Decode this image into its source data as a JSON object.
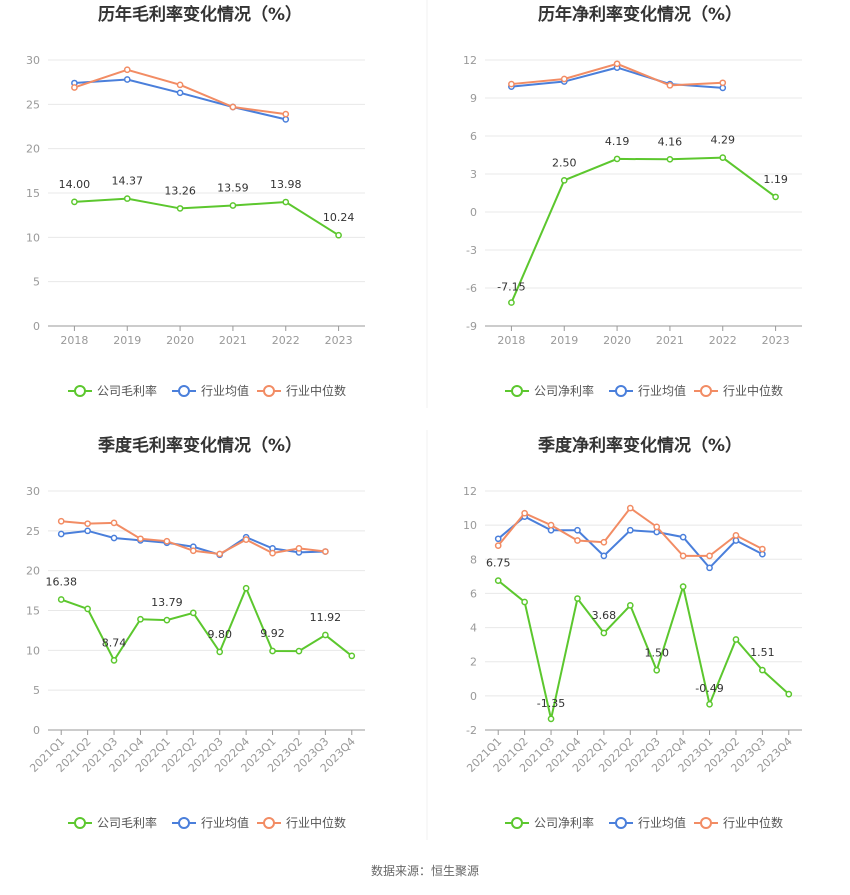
{
  "colors": {
    "company": "#5cc72e",
    "avg": "#4a7fdb",
    "median": "#f28c64",
    "grid": "#e8e8e8",
    "axis": "#999999"
  },
  "source": "数据来源：恒生聚源",
  "chart_data": [
    {
      "type": "line",
      "title": "历年毛利率变化情况（%）",
      "categories": [
        "2018",
        "2019",
        "2020",
        "2021",
        "2022",
        "2023"
      ],
      "ylim": [
        0,
        30
      ],
      "yticks": [
        0,
        5,
        10,
        15,
        20,
        25,
        30
      ],
      "rotate_labels": false,
      "legend": [
        "公司毛利率",
        "行业均值",
        "行业中位数"
      ],
      "series": [
        {
          "name": "公司毛利率",
          "values": [
            14.0,
            14.37,
            13.26,
            13.59,
            13.98,
            10.24
          ],
          "labels": [
            "14.00",
            "14.37",
            "13.26",
            "13.59",
            "13.98",
            "10.24"
          ]
        },
        {
          "name": "行业均值",
          "values": [
            27.4,
            27.8,
            26.3,
            24.7,
            23.3,
            null
          ]
        },
        {
          "name": "行业中位数",
          "values": [
            26.9,
            28.9,
            27.2,
            24.7,
            23.9,
            null
          ]
        }
      ]
    },
    {
      "type": "line",
      "title": "历年净利率变化情况（%）",
      "categories": [
        "2018",
        "2019",
        "2020",
        "2021",
        "2022",
        "2023"
      ],
      "ylim": [
        -9,
        12
      ],
      "yticks": [
        -9,
        -6,
        -3,
        0,
        3,
        6,
        9,
        12
      ],
      "rotate_labels": false,
      "legend": [
        "公司净利率",
        "行业均值",
        "行业中位数"
      ],
      "series": [
        {
          "name": "公司净利率",
          "values": [
            -7.15,
            2.5,
            4.19,
            4.16,
            4.29,
            1.19
          ],
          "labels": [
            "-7.15",
            "2.50",
            "4.19",
            "4.16",
            "4.29",
            "1.19"
          ]
        },
        {
          "name": "行业均值",
          "values": [
            9.9,
            10.3,
            11.4,
            10.1,
            9.8,
            null
          ]
        },
        {
          "name": "行业中位数",
          "values": [
            10.1,
            10.5,
            11.7,
            10.0,
            10.2,
            null
          ]
        }
      ]
    },
    {
      "type": "line",
      "title": "季度毛利率变化情况（%）",
      "categories": [
        "2021Q1",
        "2021Q2",
        "2021Q3",
        "2021Q4",
        "2022Q1",
        "2022Q2",
        "2022Q3",
        "2022Q4",
        "2023Q1",
        "2023Q2",
        "2023Q3",
        "2023Q4"
      ],
      "ylim": [
        0,
        30
      ],
      "yticks": [
        0,
        5,
        10,
        15,
        20,
        25,
        30
      ],
      "rotate_labels": true,
      "legend": [
        "公司毛利率",
        "行业均值",
        "行业中位数"
      ],
      "series": [
        {
          "name": "公司毛利率",
          "values": [
            16.38,
            15.2,
            8.74,
            13.9,
            13.79,
            14.7,
            9.8,
            17.8,
            9.92,
            9.9,
            11.92,
            9.3
          ],
          "labels": [
            "16.38",
            null,
            "8.74",
            null,
            "13.79",
            null,
            "9.80",
            null,
            "9.92",
            null,
            "11.92",
            null
          ]
        },
        {
          "name": "行业均值",
          "values": [
            24.6,
            25.0,
            24.1,
            23.8,
            23.5,
            23.0,
            22.0,
            24.2,
            22.8,
            22.3,
            22.4,
            null
          ]
        },
        {
          "name": "行业中位数",
          "values": [
            26.2,
            25.9,
            26.0,
            24.0,
            23.7,
            22.5,
            22.1,
            23.9,
            22.2,
            22.8,
            22.4,
            null
          ]
        }
      ]
    },
    {
      "type": "line",
      "title": "季度净利率变化情况（%）",
      "categories": [
        "2021Q1",
        "2021Q2",
        "2021Q3",
        "2021Q4",
        "2022Q1",
        "2022Q2",
        "2022Q3",
        "2022Q4",
        "2023Q1",
        "2023Q2",
        "2023Q3",
        "2023Q4"
      ],
      "ylim": [
        -2,
        12
      ],
      "yticks": [
        -2,
        0,
        2,
        4,
        6,
        8,
        10,
        12
      ],
      "rotate_labels": true,
      "legend": [
        "公司净利率",
        "行业均值",
        "行业中位数"
      ],
      "series": [
        {
          "name": "公司净利率",
          "values": [
            6.75,
            5.5,
            -1.35,
            5.7,
            3.68,
            5.3,
            1.5,
            6.4,
            -0.49,
            3.3,
            1.51,
            0.1
          ],
          "labels": [
            "6.75",
            null,
            "-1.35",
            null,
            "3.68",
            null,
            "1.50",
            null,
            "-0.49",
            null,
            "1.51",
            null
          ]
        },
        {
          "name": "行业均值",
          "values": [
            9.2,
            10.5,
            9.7,
            9.7,
            8.2,
            9.7,
            9.6,
            9.3,
            7.5,
            9.1,
            8.3,
            null
          ]
        },
        {
          "name": "行业中位数",
          "values": [
            8.8,
            10.7,
            10.0,
            9.1,
            9.0,
            11.0,
            9.9,
            8.2,
            8.2,
            9.4,
            8.6,
            null
          ]
        }
      ]
    }
  ]
}
